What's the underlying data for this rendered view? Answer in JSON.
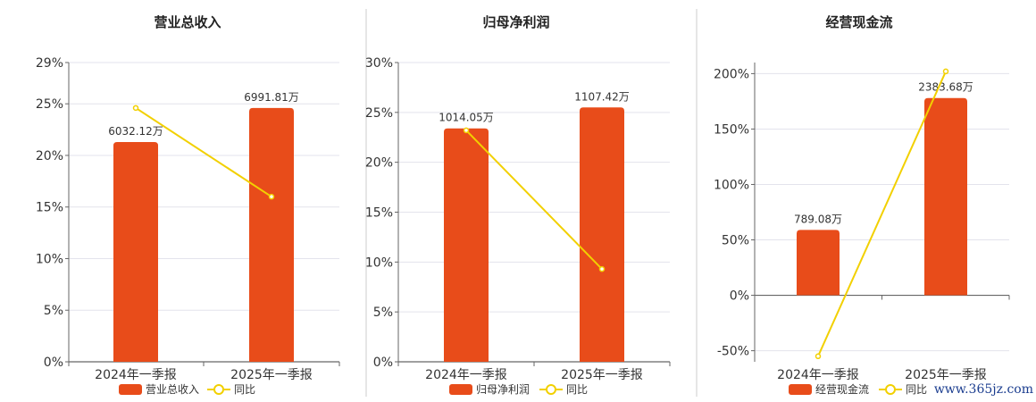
{
  "chart_data": [
    {
      "type": "bar",
      "title": "营业总收入",
      "categories": [
        "2024年一季报",
        "2025年一季报"
      ],
      "series": [
        {
          "name": "营业总收入",
          "type": "bar",
          "axis": "left",
          "values": [
            21.3,
            24.6
          ],
          "labels": [
            "6032.12万",
            "6991.81万"
          ],
          "color": "#e84c1a"
        },
        {
          "name": "同比",
          "type": "line",
          "axis": "left",
          "values": [
            24.6,
            16.0
          ],
          "color": "#f2d000"
        }
      ],
      "ylim": [
        0,
        29
      ],
      "yticks": [
        "0%",
        "5%",
        "10%",
        "15%",
        "20%",
        "25%",
        "29%"
      ],
      "ytick_values": [
        0,
        5,
        10,
        15,
        20,
        25,
        29
      ],
      "legend": "bottom"
    },
    {
      "type": "bar",
      "title": "归母净利润",
      "categories": [
        "2024年一季报",
        "2025年一季报"
      ],
      "series": [
        {
          "name": "归母净利润",
          "type": "bar",
          "axis": "left",
          "values": [
            23.4,
            25.5
          ],
          "labels": [
            "1014.05万",
            "1107.42万"
          ],
          "color": "#e84c1a"
        },
        {
          "name": "同比",
          "type": "line",
          "axis": "left",
          "values": [
            23.2,
            9.3
          ],
          "color": "#f2d000"
        }
      ],
      "ylim": [
        0,
        30
      ],
      "yticks": [
        "0%",
        "5%",
        "10%",
        "15%",
        "20%",
        "25%",
        "30%"
      ],
      "ytick_values": [
        0,
        5,
        10,
        15,
        20,
        25,
        30
      ],
      "legend": "bottom"
    },
    {
      "type": "bar",
      "title": "经营现金流",
      "categories": [
        "2024年一季报",
        "2025年一季报"
      ],
      "series": [
        {
          "name": "经营现金流",
          "type": "bar",
          "axis": "left",
          "values": [
            59,
            178
          ],
          "labels": [
            "789.08万",
            "2383.68万"
          ],
          "color": "#e84c1a"
        },
        {
          "name": "同比",
          "type": "line",
          "axis": "left",
          "values": [
            -55,
            202
          ],
          "color": "#f2d000"
        }
      ],
      "ylim": [
        -60,
        210
      ],
      "yticks": [
        "-50%",
        "0%",
        "50%",
        "100%",
        "150%",
        "200%"
      ],
      "ytick_values": [
        -50,
        0,
        50,
        100,
        150,
        200
      ],
      "legend": "bottom"
    }
  ],
  "watermark": "www.365jz.com"
}
